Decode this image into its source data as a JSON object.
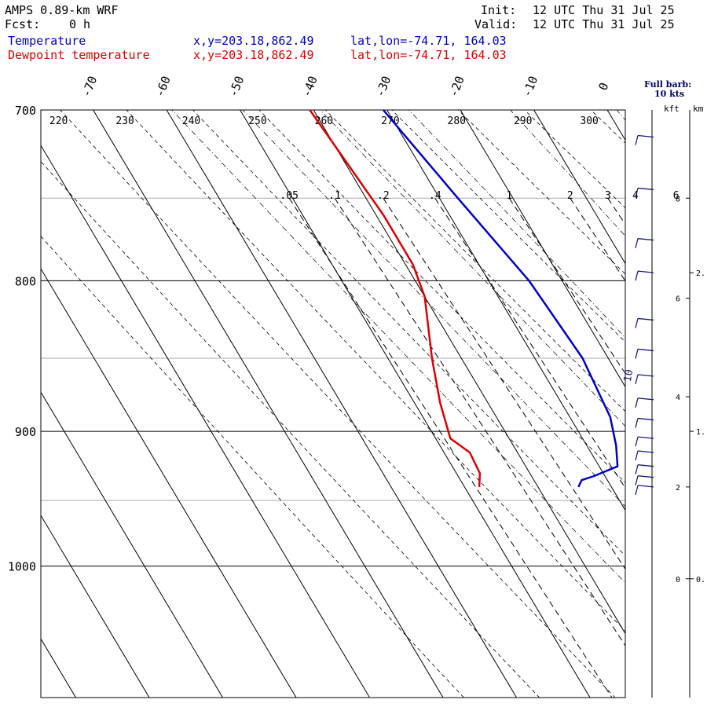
{
  "header": {
    "title": "AMPS 0.89-km WRF",
    "fcst_label": "Fcst:",
    "fcst_value": "0 h",
    "init_label": "Init:",
    "init_value": "12 UTC Thu 31 Jul 25",
    "valid_label": "Valid:",
    "valid_value": "12 UTC Thu 31 Jul 25"
  },
  "legend": [
    {
      "name": "Temperature",
      "xy": "x,y=203.18,862.49",
      "latlon": "lat,lon=-74.71, 164.03",
      "color": "#0000cc"
    },
    {
      "name": "Dewpoint temperature",
      "xy": "x,y=203.18,862.49",
      "latlon": "lat,lon=-74.71, 164.03",
      "color": "#dd0000"
    }
  ],
  "wind_key": {
    "line1": "Full barb:",
    "line2": "10 kts",
    "kft_label": "kft",
    "km_label": "km"
  },
  "chart_data": {
    "type": "line",
    "diagram": "skew-T log-P",
    "ylim": [
      700,
      1050
    ],
    "ylog": true,
    "pressure_ticks": [
      700,
      800,
      900,
      1000
    ],
    "isotherms": [
      -70,
      -60,
      -50,
      -40,
      -30,
      -20,
      -10,
      0
    ],
    "dry_adiabats_K": [
      220,
      230,
      240,
      250,
      260,
      270,
      280,
      290,
      300
    ],
    "mixing_ratios_gkg": [
      ".05",
      ".1",
      ".2",
      ".4",
      "1",
      "2",
      "3",
      "4",
      "6"
    ],
    "series": [
      {
        "name": "Temperature",
        "color": "#0000cc",
        "points": [
          {
            "p": 700,
            "t": -30.5
          },
          {
            "p": 750,
            "t": -27.5
          },
          {
            "p": 800,
            "t": -24.5
          },
          {
            "p": 850,
            "t": -23.5
          },
          {
            "p": 890,
            "t": -24.5
          },
          {
            "p": 910,
            "t": -26.0
          },
          {
            "p": 925,
            "t": -27.5
          },
          {
            "p": 932,
            "t": -31.5
          },
          {
            "p": 935,
            "t": -33.5
          },
          {
            "p": 940,
            "t": -34.5
          }
        ]
      },
      {
        "name": "Dewpoint temperature",
        "color": "#dd0000",
        "points": [
          {
            "p": 700,
            "t": -40.5
          },
          {
            "p": 760,
            "t": -39.0
          },
          {
            "p": 790,
            "t": -39.0
          },
          {
            "p": 810,
            "t": -40.0
          },
          {
            "p": 850,
            "t": -44.0
          },
          {
            "p": 880,
            "t": -46.5
          },
          {
            "p": 905,
            "t": -48.0
          },
          {
            "p": 915,
            "t": -46.5
          },
          {
            "p": 930,
            "t": -46.8
          },
          {
            "p": 940,
            "t": -48.0
          }
        ]
      }
    ],
    "height_kft": [
      {
        "label": "8",
        "p": 750
      },
      {
        "label": "6",
        "p": 811
      },
      {
        "label": "4",
        "p": 876
      },
      {
        "label": "2",
        "p": 940
      },
      {
        "label": "0",
        "p": 1010
      }
    ],
    "height_km": [
      {
        "label": "2.",
        "p": 795
      },
      {
        "label": "1.",
        "p": 900
      },
      {
        "label": "0.",
        "p": 1010
      }
    ],
    "wind_barbs": [
      {
        "p": 715,
        "speed_kt": 10
      },
      {
        "p": 745,
        "speed_kt": 10
      },
      {
        "p": 775,
        "speed_kt": 10
      },
      {
        "p": 795,
        "speed_kt": 10
      },
      {
        "p": 825,
        "speed_kt": 10
      },
      {
        "p": 845,
        "speed_kt": 10
      },
      {
        "p": 862,
        "speed_kt": 10
      },
      {
        "p": 878,
        "speed_kt": 10
      },
      {
        "p": 892,
        "speed_kt": 10
      },
      {
        "p": 905,
        "speed_kt": 10
      },
      {
        "p": 915,
        "speed_kt": 10
      },
      {
        "p": 925,
        "speed_kt": 10
      },
      {
        "p": 933,
        "speed_kt": 10
      },
      {
        "p": 940,
        "speed_kt": 10
      }
    ],
    "barb_annotation": "10"
  }
}
